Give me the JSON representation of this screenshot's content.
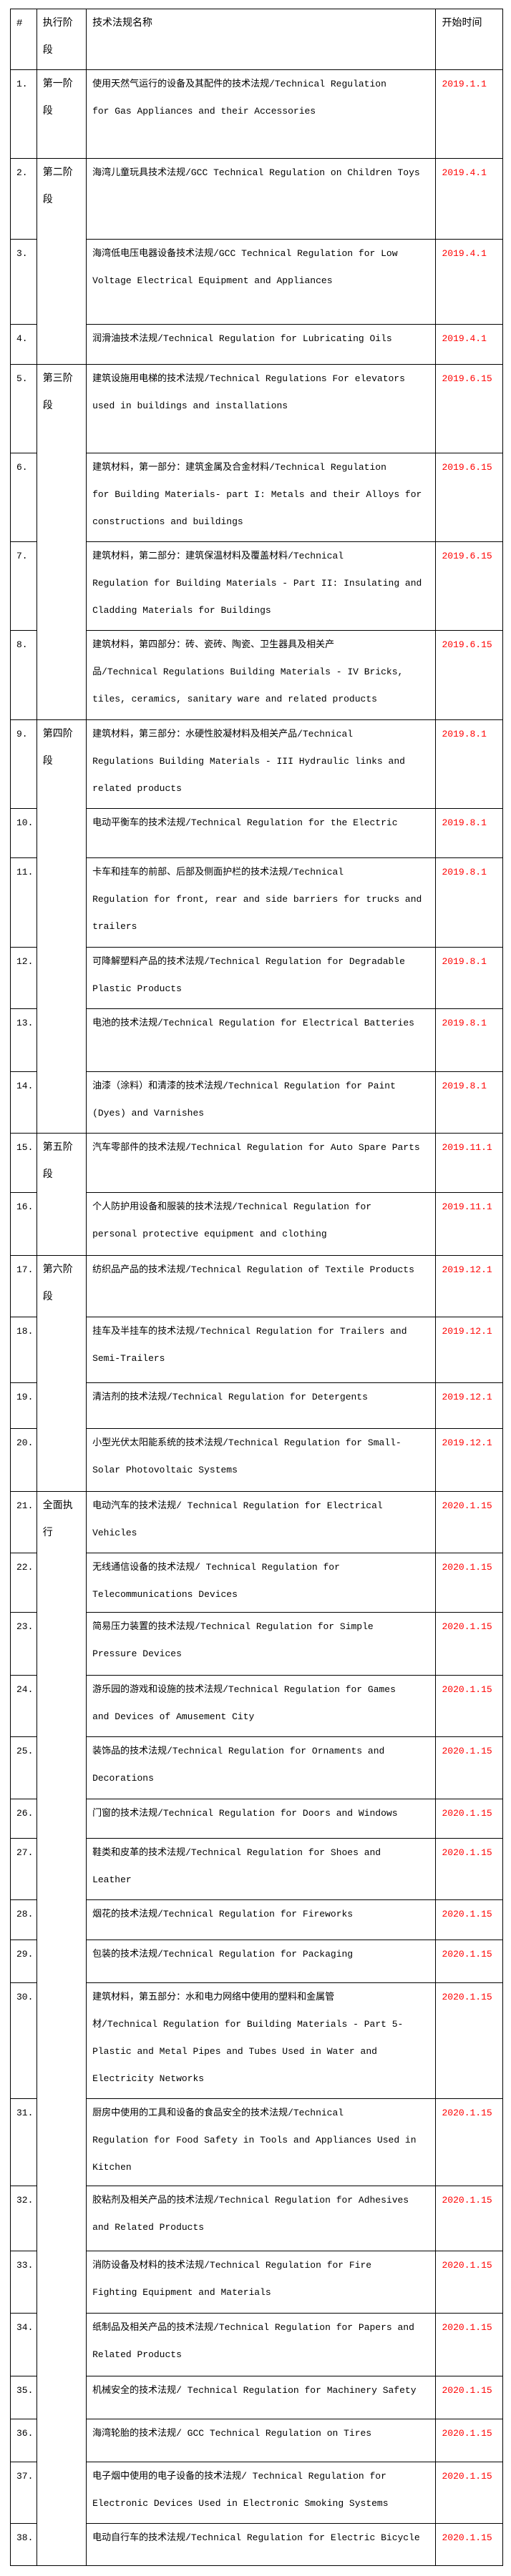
{
  "colors": {
    "date_text": "#ff0000",
    "text": "#000000",
    "border": "#000000"
  },
  "header": {
    "num": "#",
    "phase": "执行阶段",
    "name": "技术法规名称",
    "date": "开始时间"
  },
  "phases": [
    {
      "label": "第一阶段",
      "rows": 1
    },
    {
      "label": "第二阶段",
      "rows": 3
    },
    {
      "label": "第三阶段",
      "rows": 4
    },
    {
      "label": "第四阶段",
      "rows": 6
    },
    {
      "label": "第五阶段",
      "rows": 2
    },
    {
      "label": "第六阶段",
      "rows": 4
    },
    {
      "label": "全面执行",
      "rows": 18
    }
  ],
  "rows": [
    {
      "num": "1.",
      "lines": [
        "使用天然气运行的设备及其配件的技术法规/Technical Regulation",
        "for Gas Appliances and their Accessories"
      ],
      "date": "2019.1.1"
    },
    {
      "num": "2.",
      "lines": [
        "海湾儿童玩具技术法规/GCC Technical Regulation on Children Toys"
      ],
      "date": "2019.4.1"
    },
    {
      "num": "3.",
      "lines": [
        "海湾低电压电器设备技术法规/GCC Technical Regulation for Low",
        "Voltage Electrical Equipment and Appliances"
      ],
      "date": "2019.4.1"
    },
    {
      "num": "4.",
      "lines": [
        "润滑油技术法规/Technical Regulation for Lubricating Oils"
      ],
      "date": "2019.4.1"
    },
    {
      "num": "5.",
      "lines": [
        "建筑设施用电梯的技术法规/Technical Regulations For elevators",
        "used in buildings and installations"
      ],
      "date": "2019.6.15"
    },
    {
      "num": "6.",
      "lines": [
        "建筑材料，第一部分：建筑金属及合金材料/Technical Regulation",
        "for Building Materials- part I: Metals and their Alloys for",
        "constructions and buildings"
      ],
      "date": "2019.6.15"
    },
    {
      "num": "7.",
      "lines": [
        "建筑材料，第二部分：建筑保温材料及覆盖材料/Technical",
        "Regulation for Building Materials - Part II: Insulating and",
        "Cladding Materials for Buildings"
      ],
      "date": "2019.6.15"
    },
    {
      "num": "8.",
      "lines": [
        "建筑材料，第四部分：砖、瓷砖、陶瓷、卫生器具及相关产",
        "品/Technical Regulations Building Materials - IV Bricks,",
        "tiles, ceramics, sanitary ware and related products"
      ],
      "date": "2019.6.15"
    },
    {
      "num": "9.",
      "lines": [
        "建筑材料，第三部分：水硬性胶凝材料及相关产品/Technical",
        "Regulations Building Materials - III Hydraulic links and",
        "related products"
      ],
      "date": "2019.8.1"
    },
    {
      "num": "10.",
      "lines": [
        "电动平衡车的技术法规/Technical Regulation for the Electric"
      ],
      "date": "2019.8.1"
    },
    {
      "num": "11.",
      "lines": [
        "卡车和挂车的前部、后部及侧面护栏的技术法规/Technical",
        "Regulation for front, rear and side barriers for trucks and",
        "trailers"
      ],
      "date": "2019.8.1"
    },
    {
      "num": "12.",
      "lines": [
        "可降解塑料产品的技术法规/Technical Regulation for Degradable",
        "Plastic Products"
      ],
      "date": "2019.8.1"
    },
    {
      "num": "13.",
      "lines": [
        "电池的技术法规/Technical Regulation for Electrical Batteries"
      ],
      "date": "2019.8.1"
    },
    {
      "num": "14.",
      "lines": [
        "油漆（涂料）和清漆的技术法规/Technical Regulation for Paint",
        "(Dyes) and Varnishes"
      ],
      "date": "2019.8.1"
    },
    {
      "num": "15.",
      "lines": [
        "汽车零部件的技术法规/Technical Regulation for Auto Spare Parts"
      ],
      "date": "2019.11.1"
    },
    {
      "num": "16.",
      "lines": [
        "个人防护用设备和服装的技术法规/Technical Regulation for",
        "personal protective equipment and clothing"
      ],
      "date": "2019.11.1"
    },
    {
      "num": "17.",
      "lines": [
        "纺织品产品的技术法规/Technical Regulation of Textile Products"
      ],
      "date": "2019.12.1"
    },
    {
      "num": "18.",
      "lines": [
        "挂车及半挂车的技术法规/Technical Regulation for Trailers and",
        "Semi-Trailers"
      ],
      "date": "2019.12.1"
    },
    {
      "num": "19.",
      "lines": [
        "清洁剂的技术法规/Technical Regulation for Detergents"
      ],
      "date": "2019.12.1"
    },
    {
      "num": "20.",
      "lines": [
        "小型光伏太阳能系统的技术法规/Technical Regulation for Small-",
        "Solar Photovoltaic Systems"
      ],
      "date": "2019.12.1"
    },
    {
      "num": "21.",
      "lines": [
        "电动汽车的技术法规/ Technical Regulation for Electrical",
        "Vehicles"
      ],
      "date": "2020.1.15"
    },
    {
      "num": "22.",
      "lines": [
        "无线通信设备的技术法规/ Technical Regulation for",
        "Telecommunications Devices"
      ],
      "date": "2020.1.15"
    },
    {
      "num": "23.",
      "lines": [
        "简易压力装置的技术法规/Technical Regulation for Simple",
        "Pressure Devices"
      ],
      "date": "2020.1.15"
    },
    {
      "num": "24.",
      "lines": [
        "游乐园的游戏和设施的技术法规/Technical Regulation for Games",
        "and Devices of Amusement City"
      ],
      "date": "2020.1.15"
    },
    {
      "num": "25.",
      "lines": [
        "装饰品的技术法规/Technical Regulation for Ornaments and",
        "Decorations"
      ],
      "date": "2020.1.15"
    },
    {
      "num": "26.",
      "lines": [
        "门窗的技术法规/Technical Regulation for Doors and Windows"
      ],
      "date": "2020.1.15"
    },
    {
      "num": "27.",
      "lines": [
        "鞋类和皮革的技术法规/Technical Regulation for Shoes and",
        "Leather"
      ],
      "date": "2020.1.15"
    },
    {
      "num": "28.",
      "lines": [
        "烟花的技术法规/Technical Regulation for Fireworks"
      ],
      "date": "2020.1.15"
    },
    {
      "num": "29.",
      "lines": [
        "包装的技术法规/Technical Regulation for Packaging"
      ],
      "date": "2020.1.15"
    },
    {
      "num": "30.",
      "lines": [
        "建筑材料，第五部分：水和电力网络中使用的塑料和金属管",
        "材/Technical Regulation for Building Materials - Part 5-",
        "Plastic and Metal Pipes and Tubes Used in Water and",
        "Electricity Networks"
      ],
      "date": "2020.1.15"
    },
    {
      "num": "31.",
      "lines": [
        "厨房中使用的工具和设备的食品安全的技术法规/Technical",
        "Regulation for Food Safety in Tools and Appliances Used in",
        "Kitchen"
      ],
      "date": "2020.1.15"
    },
    {
      "num": "32.",
      "lines": [
        "胶粘剂及相关产品的技术法规/Technical Regulation for Adhesives",
        "and Related Products"
      ],
      "date": "2020.1.15"
    },
    {
      "num": "33.",
      "lines": [
        "消防设备及材料的技术法规/Technical Regulation for Fire",
        "Fighting Equipment and Materials"
      ],
      "date": "2020.1.15"
    },
    {
      "num": "34.",
      "lines": [
        "纸制品及相关产品的技术法规/Technical Regulation for Papers and",
        "Related Products"
      ],
      "date": "2020.1.15"
    },
    {
      "num": "35.",
      "lines": [
        "机械安全的技术法规/ Technical Regulation for Machinery Safety"
      ],
      "date": "2020.1.15"
    },
    {
      "num": "36.",
      "lines": [
        "海湾轮胎的技术法规/ GCC Technical Regulation on Tires"
      ],
      "date": "2020.1.15"
    },
    {
      "num": "37.",
      "lines": [
        "电子烟中使用的电子设备的技术法规/ Technical Regulation for",
        "Electronic Devices Used in Electronic Smoking Systems"
      ],
      "date": "2020.1.15"
    },
    {
      "num": "38.",
      "lines": [
        "电动自行车的技术法规/Technical Regulation for Electric Bicycle"
      ],
      "date": "2020.1.15"
    }
  ]
}
